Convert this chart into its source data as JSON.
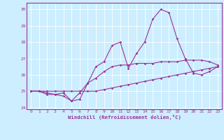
{
  "xlabel": "Windchill (Refroidissement éolien,°C)",
  "bg_color": "#cceeff",
  "line_color": "#993399",
  "grid_color": "#ffffff",
  "hours": [
    0,
    1,
    2,
    3,
    4,
    5,
    6,
    7,
    8,
    9,
    10,
    11,
    12,
    13,
    14,
    15,
    16,
    17,
    18,
    19,
    20,
    21,
    22,
    23
  ],
  "series1": [
    25.0,
    25.0,
    24.8,
    24.8,
    24.7,
    24.4,
    24.9,
    25.5,
    25.8,
    26.2,
    26.5,
    26.6,
    26.6,
    26.7,
    26.7,
    26.7,
    26.8,
    26.8,
    26.8,
    26.9,
    26.9,
    26.9,
    26.8,
    26.6
  ],
  "series2": [
    25.0,
    25.0,
    24.9,
    24.8,
    24.9,
    24.4,
    24.5,
    25.5,
    26.5,
    26.8,
    27.8,
    28.0,
    26.4,
    27.3,
    28.0,
    29.4,
    30.0,
    29.8,
    28.2,
    27.0,
    26.1,
    26.0,
    26.2,
    26.5
  ],
  "series3": [
    25.0,
    25.0,
    25.0,
    25.0,
    25.0,
    25.0,
    25.0,
    25.0,
    25.0,
    25.1,
    25.2,
    25.3,
    25.4,
    25.5,
    25.6,
    25.7,
    25.8,
    25.9,
    26.0,
    26.1,
    26.2,
    26.3,
    26.4,
    26.5
  ],
  "ylim": [
    23.9,
    30.4
  ],
  "yticks": [
    24,
    25,
    26,
    27,
    28,
    29,
    30
  ],
  "xlim": [
    -0.5,
    23.5
  ],
  "marker_size": 1.8,
  "line_width": 0.8,
  "tick_fontsize": 4.5,
  "xlabel_fontsize": 5.2
}
